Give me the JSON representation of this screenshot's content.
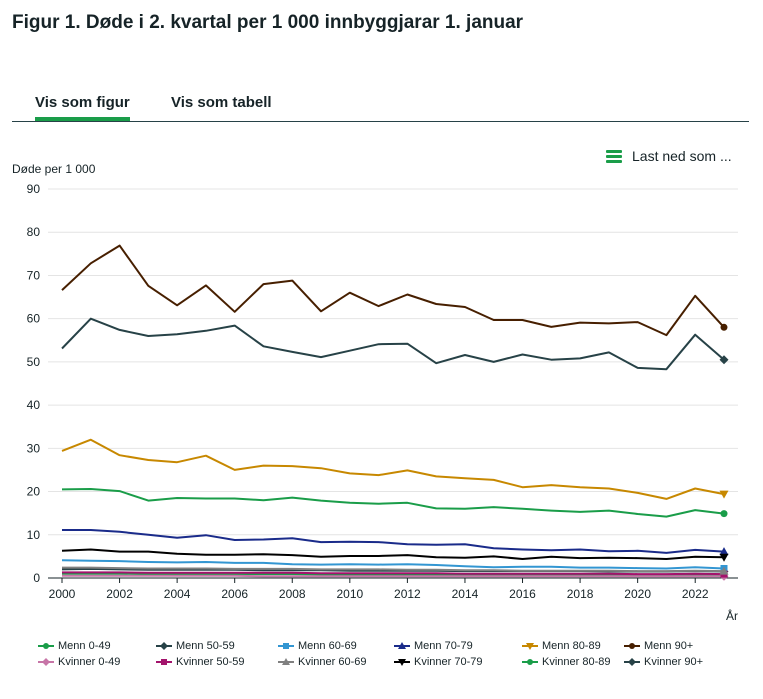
{
  "title": "Figur 1. Døde i 2. kvartal per 1 000 innbyggjarar 1. januar",
  "tabs": [
    {
      "label": "Vis som figur",
      "active": true
    },
    {
      "label": "Vis som tabell",
      "active": false
    }
  ],
  "download": {
    "label": "Last ned som ..."
  },
  "chart_data": {
    "type": "line",
    "ylabel": "Døde per 1 000",
    "xlabel": "År",
    "ylim": [
      0,
      90
    ],
    "yticks": [
      0,
      10,
      20,
      30,
      40,
      50,
      60,
      70,
      80,
      90
    ],
    "xticks": [
      2000,
      2002,
      2004,
      2006,
      2008,
      2010,
      2012,
      2014,
      2016,
      2018,
      2020,
      2022
    ],
    "x": [
      2000,
      2001,
      2002,
      2003,
      2004,
      2005,
      2006,
      2007,
      2008,
      2009,
      2010,
      2011,
      2012,
      2013,
      2014,
      2015,
      2016,
      2017,
      2018,
      2019,
      2020,
      2021,
      2022,
      2023
    ],
    "series": [
      {
        "name": "Menn 0-49",
        "color": "#1a9d49",
        "marker": "circle",
        "values": [
          1.0,
          1.0,
          1.0,
          0.9,
          0.9,
          0.9,
          0.9,
          0.9,
          0.9,
          0.8,
          0.8,
          0.8,
          0.8,
          0.7,
          0.7,
          0.7,
          0.7,
          0.7,
          0.7,
          0.7,
          0.7,
          0.7,
          0.7,
          0.7
        ]
      },
      {
        "name": "Menn 50-59",
        "color": "#274247",
        "marker": "diamond",
        "values": [
          2.0,
          2.1,
          2.0,
          1.9,
          1.9,
          1.9,
          1.9,
          1.8,
          1.8,
          1.8,
          1.7,
          1.7,
          1.7,
          1.7,
          1.6,
          1.6,
          1.6,
          1.6,
          1.6,
          1.5,
          1.5,
          1.5,
          1.6,
          1.5
        ]
      },
      {
        "name": "Menn 60-69",
        "color": "#3396d2",
        "marker": "square",
        "values": [
          4.1,
          4.0,
          3.9,
          3.7,
          3.6,
          3.7,
          3.5,
          3.5,
          3.2,
          3.1,
          3.2,
          3.1,
          3.2,
          3.0,
          2.7,
          2.5,
          2.6,
          2.6,
          2.4,
          2.4,
          2.3,
          2.2,
          2.5,
          2.2
        ]
      },
      {
        "name": "Menn 70-79",
        "color": "#1a2b8a",
        "marker": "triangle",
        "values": [
          11.1,
          11.1,
          10.7,
          10.0,
          9.3,
          9.9,
          8.8,
          8.9,
          9.2,
          8.3,
          8.4,
          8.3,
          7.8,
          7.7,
          7.8,
          6.9,
          6.6,
          6.4,
          6.6,
          6.2,
          6.3,
          5.8,
          6.5,
          6.1
        ]
      },
      {
        "name": "Menn 80-89",
        "color": "#c78800",
        "marker": "triangle-down",
        "values": [
          29.4,
          32.0,
          28.4,
          27.3,
          26.8,
          28.3,
          25.0,
          26.0,
          25.9,
          25.4,
          24.2,
          23.8,
          24.9,
          23.5,
          23.1,
          22.7,
          21.0,
          21.5,
          21.0,
          20.7,
          19.7,
          18.3,
          20.7,
          19.4
        ]
      },
      {
        "name": "Menn 90+",
        "color": "#471f00",
        "marker": "circle",
        "values": [
          66.6,
          72.8,
          76.9,
          67.6,
          63.1,
          67.7,
          61.6,
          68.0,
          68.8,
          61.7,
          66.0,
          62.9,
          65.6,
          63.4,
          62.7,
          59.7,
          59.7,
          58.1,
          59.1,
          58.9,
          59.2,
          56.2,
          65.3,
          58.0
        ]
      },
      {
        "name": "Kvinner 0-49",
        "color": "#c775a7",
        "marker": "diamond",
        "values": [
          0.5,
          0.5,
          0.5,
          0.5,
          0.5,
          0.5,
          0.5,
          0.4,
          0.4,
          0.4,
          0.4,
          0.4,
          0.4,
          0.4,
          0.4,
          0.4,
          0.4,
          0.4,
          0.4,
          0.4,
          0.4,
          0.4,
          0.4,
          0.4
        ]
      },
      {
        "name": "Kvinner 50-59",
        "color": "#a3136c",
        "marker": "square",
        "values": [
          1.3,
          1.3,
          1.3,
          1.2,
          1.2,
          1.2,
          1.2,
          1.2,
          1.2,
          1.1,
          1.1,
          1.1,
          1.1,
          1.1,
          1.0,
          1.0,
          1.0,
          1.0,
          1.0,
          1.0,
          0.9,
          0.9,
          1.0,
          0.9
        ]
      },
      {
        "name": "Kvinner 60-69",
        "color": "#808080",
        "marker": "triangle",
        "values": [
          2.4,
          2.4,
          2.3,
          2.2,
          2.2,
          2.2,
          2.1,
          2.1,
          2.1,
          2.0,
          2.0,
          2.0,
          1.9,
          1.9,
          1.8,
          1.8,
          1.7,
          1.7,
          1.7,
          1.7,
          1.6,
          1.6,
          1.7,
          1.6
        ]
      },
      {
        "name": "Kvinner 70-79",
        "color": "#000000",
        "marker": "triangle-down",
        "values": [
          6.3,
          6.6,
          6.1,
          6.1,
          5.6,
          5.4,
          5.4,
          5.5,
          5.3,
          4.9,
          5.1,
          5.1,
          5.3,
          4.8,
          4.7,
          5.0,
          4.4,
          4.9,
          4.6,
          4.7,
          4.6,
          4.4,
          4.9,
          4.8
        ]
      },
      {
        "name": "Kvinner 80-89",
        "color": "#1a9d49",
        "marker": "circle",
        "values": [
          20.5,
          20.6,
          20.1,
          17.9,
          18.5,
          18.4,
          18.4,
          18.0,
          18.6,
          17.9,
          17.4,
          17.2,
          17.4,
          16.1,
          16.0,
          16.4,
          16.0,
          15.6,
          15.3,
          15.6,
          14.8,
          14.2,
          15.7,
          14.9
        ]
      },
      {
        "name": "Kvinner 90+",
        "color": "#274247",
        "marker": "diamond",
        "values": [
          53.1,
          60.0,
          57.4,
          56.0,
          56.4,
          57.2,
          58.4,
          53.6,
          52.3,
          51.1,
          52.6,
          54.1,
          54.2,
          49.7,
          51.6,
          50.0,
          51.7,
          50.5,
          50.8,
          52.2,
          48.6,
          48.3,
          56.3,
          50.5
        ]
      }
    ]
  }
}
